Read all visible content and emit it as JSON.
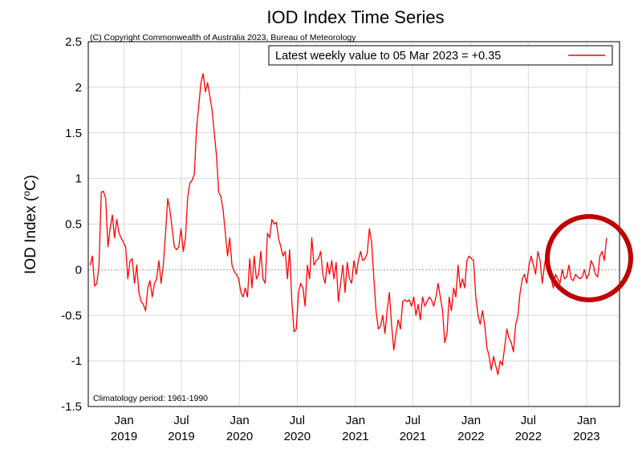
{
  "chart_data": {
    "type": "line",
    "title": "IOD Index Time Series",
    "copyright": "(C) Copyright Commonwealth of Australia 2023, Bureau of Meteorology",
    "ylabel_main": "IOD Index (",
    "ylabel_sup": "o",
    "ylabel_tail": "C)",
    "ylim": [
      -1.5,
      2.5
    ],
    "yticks": [
      {
        "value": 2.5,
        "label": "2.5"
      },
      {
        "value": 2,
        "label": "2"
      },
      {
        "value": 1.5,
        "label": "1.5"
      },
      {
        "value": 1,
        "label": "1"
      },
      {
        "value": 0.5,
        "label": "0.5"
      },
      {
        "value": 0,
        "label": "0"
      },
      {
        "value": -0.5,
        "label": "-0.5"
      },
      {
        "value": -1,
        "label": "-1"
      },
      {
        "value": -1.5,
        "label": "-1.5"
      }
    ],
    "xlim": [
      "2018-09-10",
      "2023-04-15"
    ],
    "xticks": [
      {
        "date": "2019-01-01",
        "line1": "Jan",
        "line2": "2019"
      },
      {
        "date": "2019-07-01",
        "line1": "Jul",
        "line2": "2019"
      },
      {
        "date": "2020-01-01",
        "line1": "Jan",
        "line2": "2020"
      },
      {
        "date": "2020-07-01",
        "line1": "Jul",
        "line2": "2020"
      },
      {
        "date": "2021-01-01",
        "line1": "Jan",
        "line2": "2021"
      },
      {
        "date": "2021-07-01",
        "line1": "Jul",
        "line2": "2021"
      },
      {
        "date": "2022-01-01",
        "line1": "Jan",
        "line2": "2022"
      },
      {
        "date": "2022-07-01",
        "line1": "Jul",
        "line2": "2022"
      },
      {
        "date": "2023-01-01",
        "line1": "Jan",
        "line2": "2023"
      }
    ],
    "grid": true,
    "legend": {
      "position": "top-right",
      "label": "Latest weekly value to 05 Mar 2023 = +0.35"
    },
    "climatology_note": "Climatology period: 1961-1990",
    "series": [
      {
        "color": "#ff0000",
        "points": [
          [
            "2018-09-16",
            0.05
          ],
          [
            "2018-09-23",
            0.15
          ],
          [
            "2018-09-30",
            -0.18
          ],
          [
            "2018-10-07",
            -0.15
          ],
          [
            "2018-10-14",
            0.05
          ],
          [
            "2018-10-21",
            0.85
          ],
          [
            "2018-10-28",
            0.86
          ],
          [
            "2018-11-04",
            0.78
          ],
          [
            "2018-11-11",
            0.25
          ],
          [
            "2018-11-18",
            0.45
          ],
          [
            "2018-11-25",
            0.6
          ],
          [
            "2018-12-02",
            0.35
          ],
          [
            "2018-12-09",
            0.55
          ],
          [
            "2018-12-16",
            0.4
          ],
          [
            "2018-12-23",
            0.35
          ],
          [
            "2018-12-30",
            0.3
          ],
          [
            "2019-01-06",
            0.25
          ],
          [
            "2019-01-13",
            -0.1
          ],
          [
            "2019-01-20",
            0.1
          ],
          [
            "2019-01-27",
            0.12
          ],
          [
            "2019-02-03",
            -0.15
          ],
          [
            "2019-02-10",
            0.05
          ],
          [
            "2019-02-17",
            -0.25
          ],
          [
            "2019-02-24",
            -0.35
          ],
          [
            "2019-03-03",
            -0.38
          ],
          [
            "2019-03-10",
            -0.45
          ],
          [
            "2019-03-17",
            -0.2
          ],
          [
            "2019-03-24",
            -0.12
          ],
          [
            "2019-03-31",
            -0.3
          ],
          [
            "2019-04-07",
            -0.15
          ],
          [
            "2019-04-14",
            -0.1
          ],
          [
            "2019-04-21",
            0.1
          ],
          [
            "2019-04-28",
            -0.15
          ],
          [
            "2019-05-05",
            0.05
          ],
          [
            "2019-05-12",
            0.4
          ],
          [
            "2019-05-19",
            0.78
          ],
          [
            "2019-05-26",
            0.65
          ],
          [
            "2019-06-02",
            0.45
          ],
          [
            "2019-06-09",
            0.25
          ],
          [
            "2019-06-16",
            0.22
          ],
          [
            "2019-06-23",
            0.25
          ],
          [
            "2019-06-30",
            0.45
          ],
          [
            "2019-07-07",
            0.2
          ],
          [
            "2019-07-14",
            0.35
          ],
          [
            "2019-07-21",
            0.8
          ],
          [
            "2019-07-28",
            0.95
          ],
          [
            "2019-08-04",
            0.98
          ],
          [
            "2019-08-11",
            1.05
          ],
          [
            "2019-08-18",
            1.55
          ],
          [
            "2019-08-25",
            1.8
          ],
          [
            "2019-09-01",
            2.05
          ],
          [
            "2019-09-08",
            2.15
          ],
          [
            "2019-09-15",
            1.95
          ],
          [
            "2019-09-22",
            2.05
          ],
          [
            "2019-09-29",
            1.9
          ],
          [
            "2019-10-06",
            1.75
          ],
          [
            "2019-10-13",
            1.5
          ],
          [
            "2019-10-20",
            1.25
          ],
          [
            "2019-10-27",
            0.85
          ],
          [
            "2019-11-03",
            0.8
          ],
          [
            "2019-11-10",
            0.65
          ],
          [
            "2019-11-17",
            0.4
          ],
          [
            "2019-11-24",
            0.15
          ],
          [
            "2019-12-01",
            0.35
          ],
          [
            "2019-12-08",
            0.05
          ],
          [
            "2019-12-15",
            -0.02
          ],
          [
            "2019-12-22",
            -0.05
          ],
          [
            "2019-12-29",
            -0.1
          ],
          [
            "2020-01-05",
            -0.25
          ],
          [
            "2020-01-12",
            -0.3
          ],
          [
            "2020-01-19",
            -0.2
          ],
          [
            "2020-01-26",
            -0.3
          ],
          [
            "2020-02-02",
            0.12
          ],
          [
            "2020-02-09",
            -0.2
          ],
          [
            "2020-02-16",
            0.15
          ],
          [
            "2020-02-23",
            -0.1
          ],
          [
            "2020-03-01",
            -0.05
          ],
          [
            "2020-03-08",
            0.2
          ],
          [
            "2020-03-15",
            -0.1
          ],
          [
            "2020-03-22",
            -0.15
          ],
          [
            "2020-03-29",
            0.4
          ],
          [
            "2020-04-05",
            0.35
          ],
          [
            "2020-04-12",
            0.55
          ],
          [
            "2020-04-19",
            0.5
          ],
          [
            "2020-04-26",
            0.52
          ],
          [
            "2020-05-03",
            0.35
          ],
          [
            "2020-05-10",
            0.25
          ],
          [
            "2020-05-17",
            0.15
          ],
          [
            "2020-05-24",
            0.2
          ],
          [
            "2020-05-31",
            -0.1
          ],
          [
            "2020-06-07",
            0.22
          ],
          [
            "2020-06-14",
            -0.35
          ],
          [
            "2020-06-21",
            -0.68
          ],
          [
            "2020-06-28",
            -0.65
          ],
          [
            "2020-07-05",
            -0.25
          ],
          [
            "2020-07-12",
            -0.15
          ],
          [
            "2020-07-19",
            -0.2
          ],
          [
            "2020-07-26",
            -0.4
          ],
          [
            "2020-08-02",
            0.05
          ],
          [
            "2020-08-09",
            -0.1
          ],
          [
            "2020-08-16",
            0.35
          ],
          [
            "2020-08-23",
            0.05
          ],
          [
            "2020-08-30",
            0.1
          ],
          [
            "2020-09-06",
            0.12
          ],
          [
            "2020-09-13",
            0.2
          ],
          [
            "2020-09-20",
            -0.05
          ],
          [
            "2020-09-27",
            -0.15
          ],
          [
            "2020-10-04",
            0.08
          ],
          [
            "2020-10-11",
            -0.05
          ],
          [
            "2020-10-18",
            0.1
          ],
          [
            "2020-10-25",
            -0.1
          ],
          [
            "2020-11-01",
            0.08
          ],
          [
            "2020-11-08",
            -0.35
          ],
          [
            "2020-11-15",
            -0.15
          ],
          [
            "2020-11-22",
            0.05
          ],
          [
            "2020-11-29",
            -0.25
          ],
          [
            "2020-12-06",
            0.08
          ],
          [
            "2020-12-13",
            -0.1
          ],
          [
            "2020-12-20",
            -0.15
          ],
          [
            "2020-12-27",
            0.1
          ],
          [
            "2021-01-03",
            -0.05
          ],
          [
            "2021-01-10",
            0.1
          ],
          [
            "2021-01-17",
            0.2
          ],
          [
            "2021-01-24",
            0.1
          ],
          [
            "2021-01-31",
            0.12
          ],
          [
            "2021-02-07",
            0.18
          ],
          [
            "2021-02-14",
            0.45
          ],
          [
            "2021-02-21",
            0.3
          ],
          [
            "2021-02-28",
            -0.1
          ],
          [
            "2021-03-07",
            -0.45
          ],
          [
            "2021-03-14",
            -0.65
          ],
          [
            "2021-03-21",
            -0.62
          ],
          [
            "2021-03-28",
            -0.5
          ],
          [
            "2021-04-04",
            -0.7
          ],
          [
            "2021-04-11",
            -0.45
          ],
          [
            "2021-04-18",
            -0.25
          ],
          [
            "2021-04-25",
            -0.6
          ],
          [
            "2021-05-02",
            -0.88
          ],
          [
            "2021-05-09",
            -0.7
          ],
          [
            "2021-05-16",
            -0.55
          ],
          [
            "2021-05-23",
            -0.65
          ],
          [
            "2021-05-30",
            -0.35
          ],
          [
            "2021-06-06",
            -0.33
          ],
          [
            "2021-06-13",
            -0.35
          ],
          [
            "2021-06-20",
            -0.33
          ],
          [
            "2021-06-27",
            -0.4
          ],
          [
            "2021-07-04",
            -0.3
          ],
          [
            "2021-07-11",
            -0.5
          ],
          [
            "2021-07-18",
            -0.38
          ],
          [
            "2021-07-25",
            -0.55
          ],
          [
            "2021-08-01",
            -0.3
          ],
          [
            "2021-08-08",
            -0.4
          ],
          [
            "2021-08-15",
            -0.35
          ],
          [
            "2021-08-22",
            -0.3
          ],
          [
            "2021-08-29",
            -0.33
          ],
          [
            "2021-09-05",
            -0.4
          ],
          [
            "2021-09-12",
            -0.3
          ],
          [
            "2021-09-19",
            -0.15
          ],
          [
            "2021-09-26",
            -0.3
          ],
          [
            "2021-10-03",
            -0.45
          ],
          [
            "2021-10-10",
            -0.8
          ],
          [
            "2021-10-17",
            -0.7
          ],
          [
            "2021-10-24",
            -0.3
          ],
          [
            "2021-10-31",
            -0.45
          ],
          [
            "2021-11-07",
            -0.2
          ],
          [
            "2021-11-14",
            -0.3
          ],
          [
            "2021-11-21",
            0.05
          ],
          [
            "2021-11-28",
            -0.2
          ],
          [
            "2021-12-05",
            -0.1
          ],
          [
            "2021-12-12",
            -0.2
          ],
          [
            "2021-12-19",
            0.1
          ],
          [
            "2021-12-26",
            0.15
          ],
          [
            "2022-01-02",
            0.12
          ],
          [
            "2022-01-09",
            0.1
          ],
          [
            "2022-01-16",
            -0.3
          ],
          [
            "2022-01-23",
            -0.5
          ],
          [
            "2022-01-30",
            -0.6
          ],
          [
            "2022-02-06",
            -0.45
          ],
          [
            "2022-02-13",
            -0.6
          ],
          [
            "2022-02-20",
            -0.85
          ],
          [
            "2022-02-27",
            -0.95
          ],
          [
            "2022-03-06",
            -1.1
          ],
          [
            "2022-03-13",
            -0.95
          ],
          [
            "2022-03-20",
            -1.05
          ],
          [
            "2022-03-27",
            -1.15
          ],
          [
            "2022-04-03",
            -1.0
          ],
          [
            "2022-04-10",
            -1.05
          ],
          [
            "2022-04-17",
            -0.85
          ],
          [
            "2022-04-24",
            -0.65
          ],
          [
            "2022-05-01",
            -0.75
          ],
          [
            "2022-05-08",
            -0.8
          ],
          [
            "2022-05-15",
            -0.9
          ],
          [
            "2022-05-22",
            -0.6
          ],
          [
            "2022-05-29",
            -0.5
          ],
          [
            "2022-06-05",
            -0.25
          ],
          [
            "2022-06-12",
            -0.1
          ],
          [
            "2022-06-19",
            -0.05
          ],
          [
            "2022-06-26",
            -0.15
          ],
          [
            "2022-07-03",
            0.05
          ],
          [
            "2022-07-10",
            0.15
          ],
          [
            "2022-07-17",
            0.05
          ],
          [
            "2022-07-24",
            -0.05
          ],
          [
            "2022-07-31",
            0.2
          ],
          [
            "2022-08-07",
            0.1
          ],
          [
            "2022-08-14",
            -0.15
          ],
          [
            "2022-08-21",
            0.05
          ],
          [
            "2022-08-28",
            0.2
          ],
          [
            "2022-09-04",
            -0.05
          ],
          [
            "2022-09-11",
            -0.1
          ],
          [
            "2022-09-18",
            -0.2
          ],
          [
            "2022-09-25",
            -0.05
          ],
          [
            "2022-10-02",
            -0.1
          ],
          [
            "2022-10-09",
            -0.15
          ],
          [
            "2022-10-16",
            0.0
          ],
          [
            "2022-10-23",
            -0.1
          ],
          [
            "2022-10-30",
            -0.08
          ],
          [
            "2022-11-06",
            0.05
          ],
          [
            "2022-11-13",
            -0.1
          ],
          [
            "2022-11-20",
            -0.12
          ],
          [
            "2022-11-27",
            -0.05
          ],
          [
            "2022-12-04",
            -0.08
          ],
          [
            "2022-12-11",
            -0.1
          ],
          [
            "2022-12-18",
            -0.08
          ],
          [
            "2022-12-25",
            0.0
          ],
          [
            "2023-01-01",
            -0.1
          ],
          [
            "2023-01-08",
            -0.05
          ],
          [
            "2023-01-15",
            0.1
          ],
          [
            "2023-01-22",
            0.05
          ],
          [
            "2023-01-29",
            -0.05
          ],
          [
            "2023-02-05",
            -0.08
          ],
          [
            "2023-02-12",
            0.15
          ],
          [
            "2023-02-19",
            0.2
          ],
          [
            "2023-02-26",
            0.1
          ],
          [
            "2023-03-05",
            0.35
          ]
        ]
      }
    ]
  }
}
